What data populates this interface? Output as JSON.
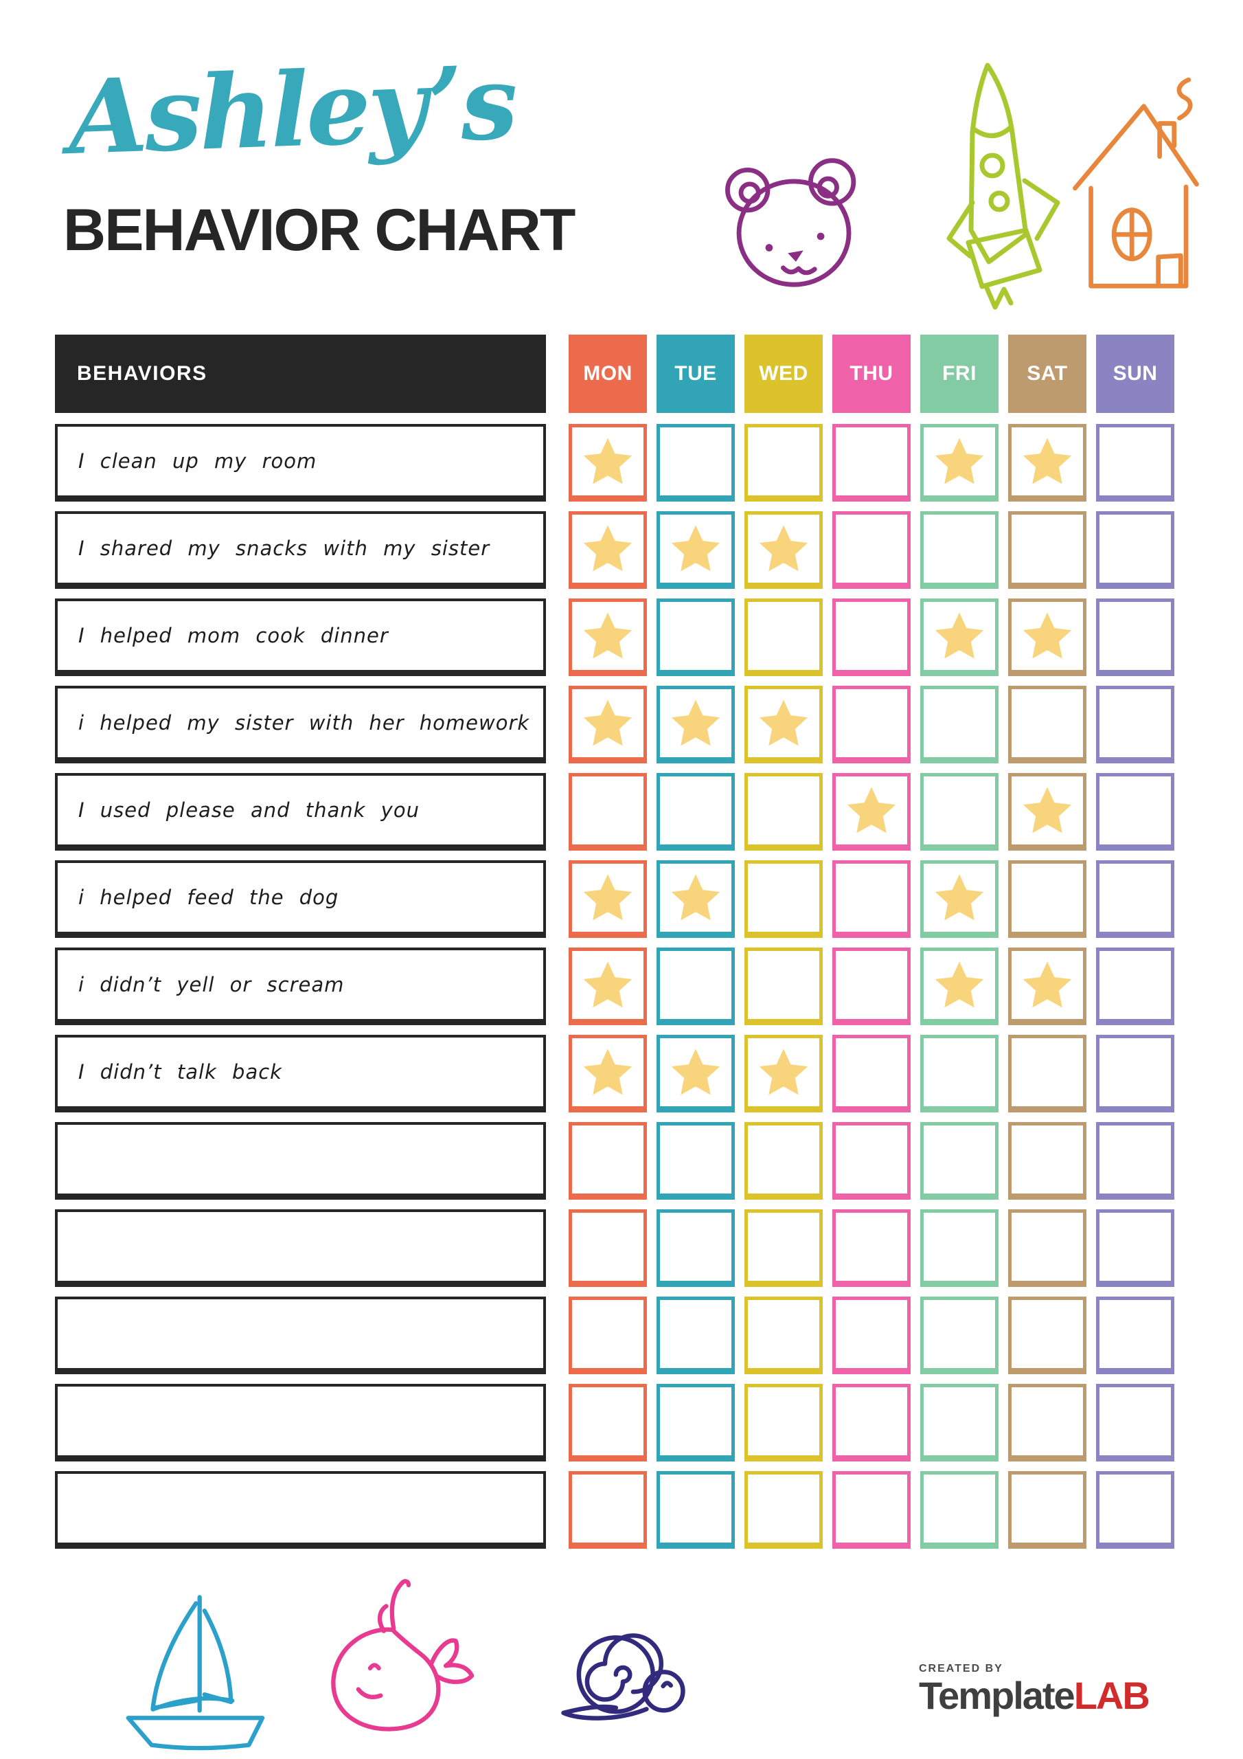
{
  "header": {
    "name": "Ashley’s",
    "title": "BEHAVIOR CHART"
  },
  "colors": {
    "title_script": "#38A9BA",
    "ink": "#262626",
    "star": "#F8D47C",
    "doodle_bear": "#8B2F84",
    "doodle_rocket": "#A9C72F",
    "doodle_house": "#E8873B",
    "doodle_boat": "#2AA0CB",
    "doodle_whale": "#E73A90",
    "doodle_snail": "#322B7D",
    "logo_text": "#3F3F3F",
    "logo_accent": "#D22B2B"
  },
  "table": {
    "behaviors_label": "BEHAVIORS",
    "days": [
      {
        "label": "MON",
        "color": "#ED6B4D"
      },
      {
        "label": "TUE",
        "color": "#31A5B6"
      },
      {
        "label": "WED",
        "color": "#DCC32B"
      },
      {
        "label": "THU",
        "color": "#EF61A8"
      },
      {
        "label": "FRI",
        "color": "#83CBA2"
      },
      {
        "label": "SAT",
        "color": "#BE9B6F"
      },
      {
        "label": "SUN",
        "color": "#8B84C2"
      }
    ],
    "rows": [
      {
        "behavior": "I clean up my room",
        "stars": [
          "MON",
          "FRI",
          "SAT"
        ]
      },
      {
        "behavior": "I shared my snacks with my sister",
        "stars": [
          "MON",
          "TUE",
          "WED"
        ]
      },
      {
        "behavior": "I helped mom cook dinner",
        "stars": [
          "MON",
          "FRI",
          "SAT"
        ]
      },
      {
        "behavior": "i helped my sister with her homework",
        "stars": [
          "MON",
          "TUE",
          "WED"
        ]
      },
      {
        "behavior": "I used please and thank you",
        "stars": [
          "THU",
          "SAT"
        ]
      },
      {
        "behavior": "i helped feed the dog",
        "stars": [
          "MON",
          "TUE",
          "FRI"
        ]
      },
      {
        "behavior": "i didn’t yell or scream",
        "stars": [
          "MON",
          "FRI",
          "SAT"
        ]
      },
      {
        "behavior": "I didn’t talk back",
        "stars": [
          "MON",
          "TUE",
          "WED"
        ]
      },
      {
        "behavior": "",
        "stars": []
      },
      {
        "behavior": "",
        "stars": []
      },
      {
        "behavior": "",
        "stars": []
      },
      {
        "behavior": "",
        "stars": []
      },
      {
        "behavior": "",
        "stars": []
      }
    ]
  },
  "decorations": {
    "top": [
      "teddy-bear-doodle",
      "rocket-doodle",
      "house-doodle"
    ],
    "bottom": [
      "sailboat-doodle",
      "whale-doodle",
      "snail-doodle"
    ]
  },
  "footer": {
    "created_by": "CREATED BY",
    "brand": "Template",
    "brand_accent": "LAB"
  }
}
